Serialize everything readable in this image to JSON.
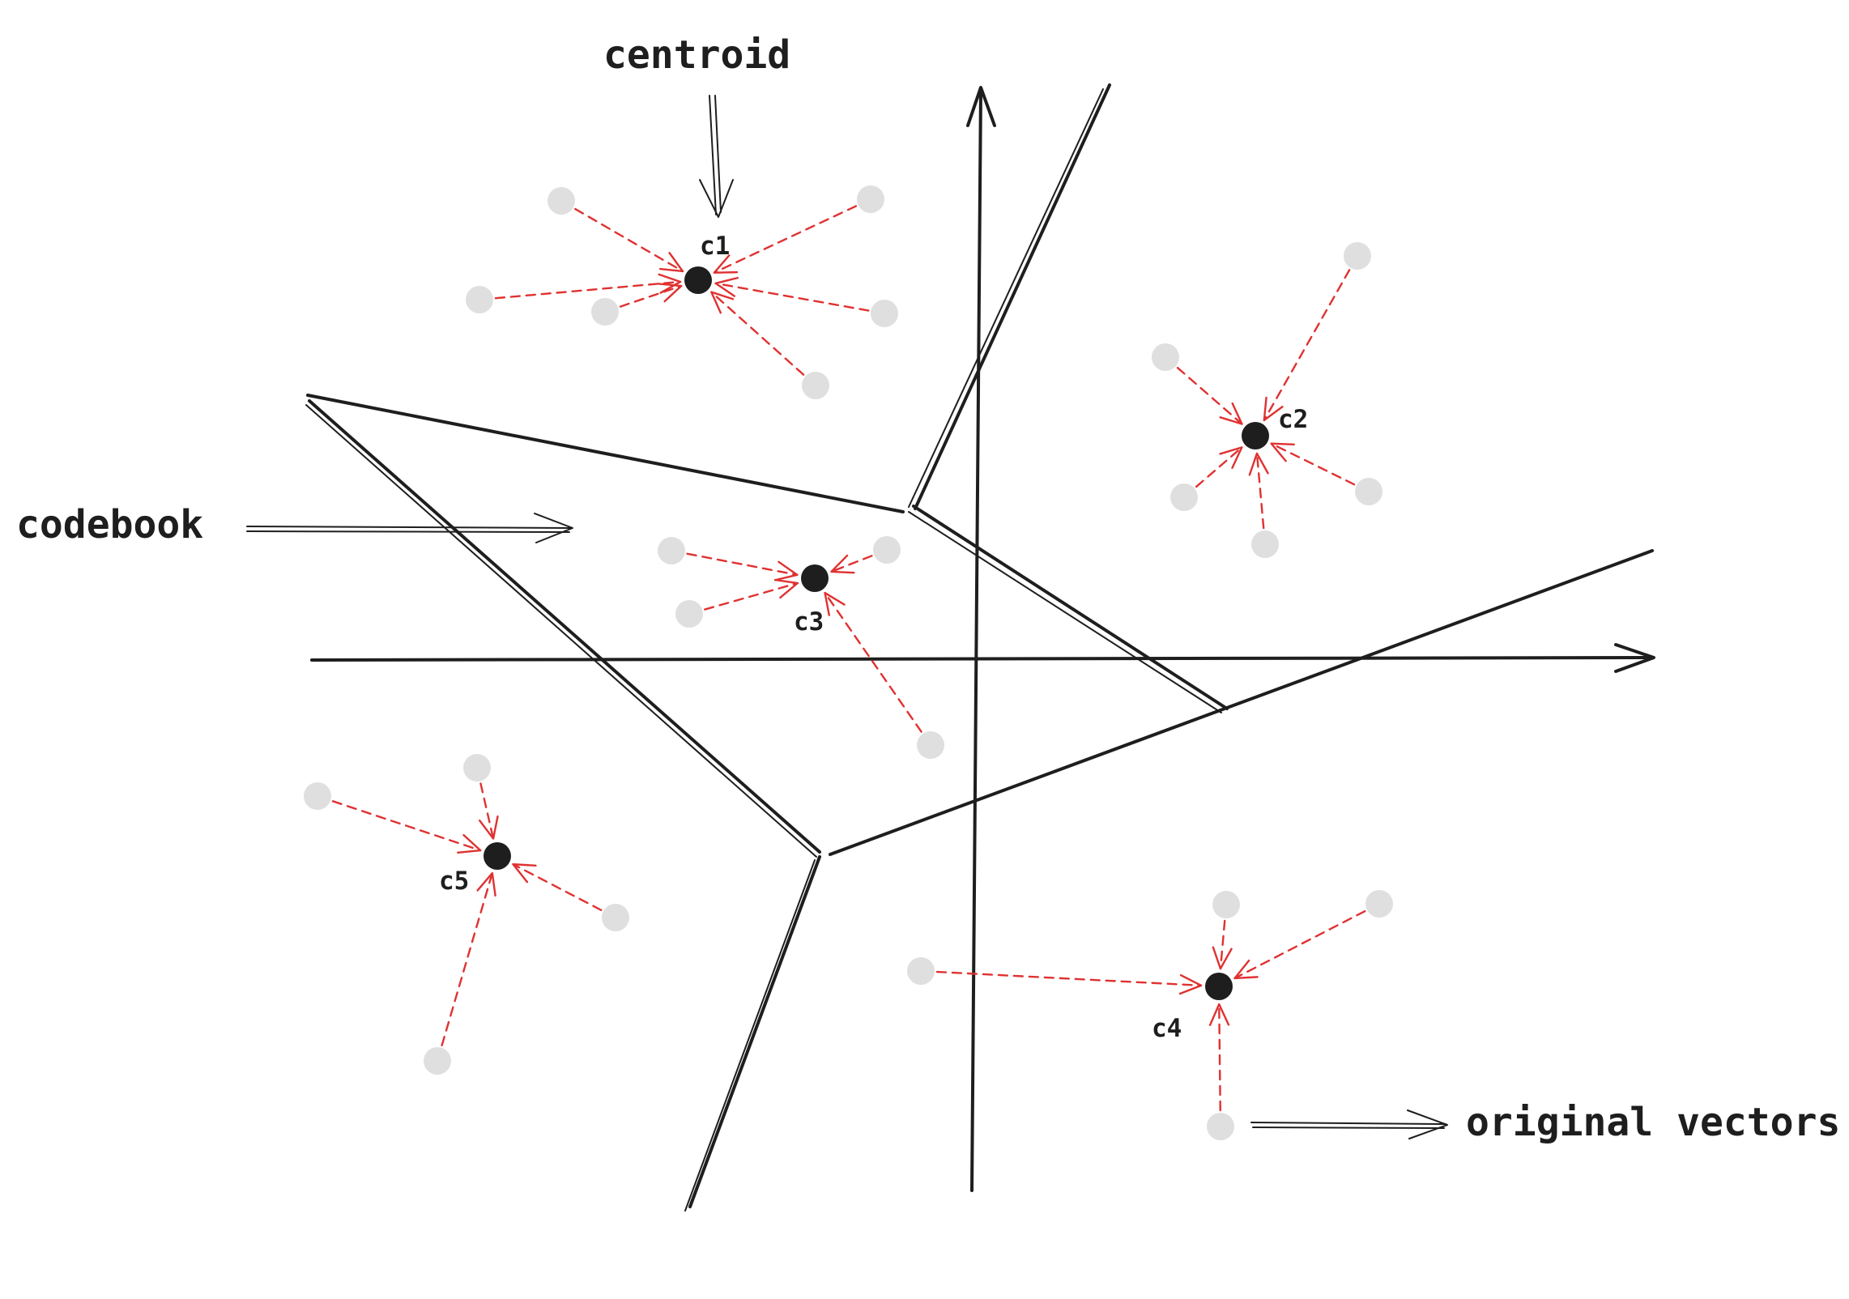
{
  "annotations": {
    "centroid": "centroid",
    "codebook": "codebook",
    "original_vectors": "original vectors"
  },
  "centroids": [
    {
      "id": "c1",
      "label": "c1"
    },
    {
      "id": "c2",
      "label": "c2"
    },
    {
      "id": "c3",
      "label": "c3"
    },
    {
      "id": "c4",
      "label": "c4"
    },
    {
      "id": "c5",
      "label": "c5"
    }
  ],
  "colors": {
    "ink": "#1e1e1e",
    "assignment": "#e03131",
    "vector_point": "#dfdfdf",
    "background": "#ffffff"
  }
}
